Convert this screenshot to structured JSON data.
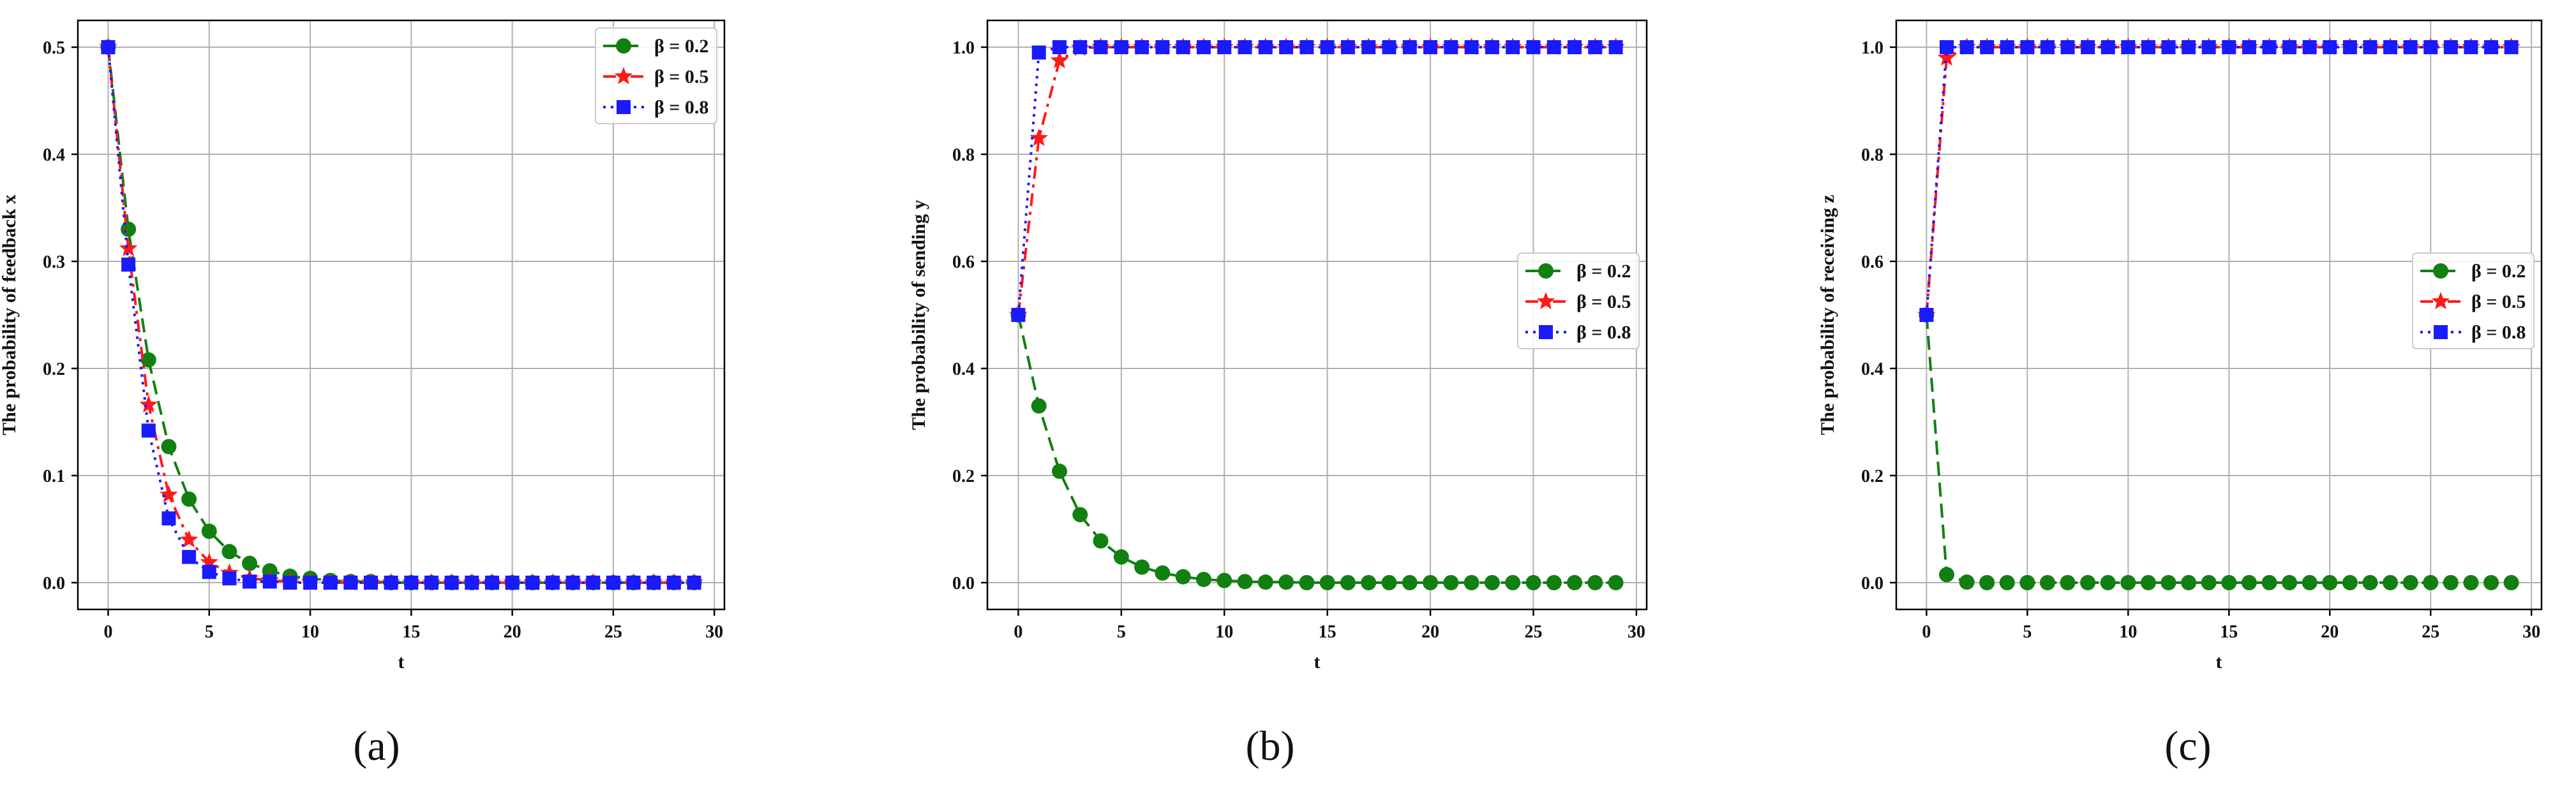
{
  "chart_data": [
    {
      "type": "line",
      "caption": "(a)",
      "xlabel": "t",
      "ylabel": "The probability of feedback x",
      "xlim": [
        -1.5,
        30.5
      ],
      "ylim": [
        -0.025,
        0.525
      ],
      "xticks": [
        0,
        5,
        10,
        15,
        20,
        25,
        30
      ],
      "yticks": [
        0.0,
        0.1,
        0.2,
        0.3,
        0.4,
        0.5
      ],
      "ytick_labels": [
        "0.0",
        "0.1",
        "0.2",
        "0.3",
        "0.4",
        "0.5"
      ],
      "grid": true,
      "legend_position": "top-right",
      "x": [
        0,
        1,
        2,
        3,
        4,
        5,
        6,
        7,
        8,
        9,
        10,
        11,
        12,
        13,
        14,
        15,
        16,
        17,
        18,
        19,
        20,
        21,
        22,
        23,
        24,
        25,
        26,
        27,
        28,
        29
      ],
      "series": [
        {
          "name": "β = 0.2",
          "color": "#118011",
          "linestyle": "dashed",
          "marker": "circle",
          "values": [
            0.5,
            0.33,
            0.208,
            0.127,
            0.078,
            0.048,
            0.029,
            0.018,
            0.011,
            0.006,
            0.004,
            0.002,
            0.001,
            0.001,
            0,
            0,
            0,
            0,
            0,
            0,
            0,
            0,
            0,
            0,
            0,
            0,
            0,
            0,
            0,
            0
          ]
        },
        {
          "name": "β = 0.5",
          "color": "#ff1a1a",
          "linestyle": "dashdot",
          "marker": "star",
          "values": [
            0.5,
            0.312,
            0.166,
            0.082,
            0.04,
            0.019,
            0.009,
            0.004,
            0.002,
            0.001,
            0,
            0,
            0,
            0,
            0,
            0,
            0,
            0,
            0,
            0,
            0,
            0,
            0,
            0,
            0,
            0,
            0,
            0,
            0,
            0
          ]
        },
        {
          "name": "β = 0.8",
          "color": "#1a1aff",
          "linestyle": "dotted",
          "marker": "square",
          "values": [
            0.5,
            0.297,
            0.142,
            0.06,
            0.024,
            0.01,
            0.004,
            0.001,
            0.001,
            0,
            0,
            0,
            0,
            0,
            0,
            0,
            0,
            0,
            0,
            0,
            0,
            0,
            0,
            0,
            0,
            0,
            0,
            0,
            0,
            0
          ]
        }
      ]
    },
    {
      "type": "line",
      "caption": "(b)",
      "xlabel": "t",
      "ylabel": "The probability of sending y",
      "xlim": [
        -1.5,
        30.5
      ],
      "ylim": [
        -0.05,
        1.05
      ],
      "xticks": [
        0,
        5,
        10,
        15,
        20,
        25,
        30
      ],
      "yticks": [
        0.0,
        0.2,
        0.4,
        0.6,
        0.8,
        1.0
      ],
      "ytick_labels": [
        "0.0",
        "0.2",
        "0.4",
        "0.6",
        "0.8",
        "1.0"
      ],
      "grid": true,
      "legend_position": "center-right",
      "x": [
        0,
        1,
        2,
        3,
        4,
        5,
        6,
        7,
        8,
        9,
        10,
        11,
        12,
        13,
        14,
        15,
        16,
        17,
        18,
        19,
        20,
        21,
        22,
        23,
        24,
        25,
        26,
        27,
        28,
        29
      ],
      "series": [
        {
          "name": "β = 0.2",
          "color": "#118011",
          "linestyle": "dashed",
          "marker": "circle",
          "values": [
            0.5,
            0.33,
            0.208,
            0.127,
            0.078,
            0.048,
            0.029,
            0.018,
            0.011,
            0.006,
            0.004,
            0.002,
            0.001,
            0.001,
            0,
            0,
            0,
            0,
            0,
            0,
            0,
            0,
            0,
            0,
            0,
            0,
            0,
            0,
            0,
            0
          ]
        },
        {
          "name": "β = 0.5",
          "color": "#ff1a1a",
          "linestyle": "dashdot",
          "marker": "star",
          "values": [
            0.5,
            0.83,
            0.975,
            0.998,
            1,
            1,
            1,
            1,
            1,
            1,
            1,
            1,
            1,
            1,
            1,
            1,
            1,
            1,
            1,
            1,
            1,
            1,
            1,
            1,
            1,
            1,
            1,
            1,
            1,
            1
          ]
        },
        {
          "name": "β = 0.8",
          "color": "#1a1aff",
          "linestyle": "dotted",
          "marker": "square",
          "values": [
            0.5,
            0.99,
            1,
            1,
            1,
            1,
            1,
            1,
            1,
            1,
            1,
            1,
            1,
            1,
            1,
            1,
            1,
            1,
            1,
            1,
            1,
            1,
            1,
            1,
            1,
            1,
            1,
            1,
            1,
            1
          ]
        }
      ]
    },
    {
      "type": "line",
      "caption": "(c)",
      "xlabel": "t",
      "ylabel": "The probability of receiving z",
      "xlim": [
        -1.5,
        30.5
      ],
      "ylim": [
        -0.05,
        1.05
      ],
      "xticks": [
        0,
        5,
        10,
        15,
        20,
        25,
        30
      ],
      "yticks": [
        0.0,
        0.2,
        0.4,
        0.6,
        0.8,
        1.0
      ],
      "ytick_labels": [
        "0.0",
        "0.2",
        "0.4",
        "0.6",
        "0.8",
        "1.0"
      ],
      "grid": true,
      "legend_position": "center-right",
      "x": [
        0,
        1,
        2,
        3,
        4,
        5,
        6,
        7,
        8,
        9,
        10,
        11,
        12,
        13,
        14,
        15,
        16,
        17,
        18,
        19,
        20,
        21,
        22,
        23,
        24,
        25,
        26,
        27,
        28,
        29
      ],
      "series": [
        {
          "name": "β = 0.2",
          "color": "#118011",
          "linestyle": "dashed",
          "marker": "circle",
          "values": [
            0.5,
            0.015,
            0.001,
            0,
            0,
            0,
            0,
            0,
            0,
            0,
            0,
            0,
            0,
            0,
            0,
            0,
            0,
            0,
            0,
            0,
            0,
            0,
            0,
            0,
            0,
            0,
            0,
            0,
            0,
            0
          ]
        },
        {
          "name": "β = 0.5",
          "color": "#ff1a1a",
          "linestyle": "dashdot",
          "marker": "star",
          "values": [
            0.5,
            0.98,
            1,
            1,
            1,
            1,
            1,
            1,
            1,
            1,
            1,
            1,
            1,
            1,
            1,
            1,
            1,
            1,
            1,
            1,
            1,
            1,
            1,
            1,
            1,
            1,
            1,
            1,
            1,
            1
          ]
        },
        {
          "name": "β = 0.8",
          "color": "#1a1aff",
          "linestyle": "dotted",
          "marker": "square",
          "values": [
            0.5,
            1,
            1,
            1,
            1,
            1,
            1,
            1,
            1,
            1,
            1,
            1,
            1,
            1,
            1,
            1,
            1,
            1,
            1,
            1,
            1,
            1,
            1,
            1,
            1,
            1,
            1,
            1,
            1,
            1
          ]
        }
      ]
    }
  ]
}
